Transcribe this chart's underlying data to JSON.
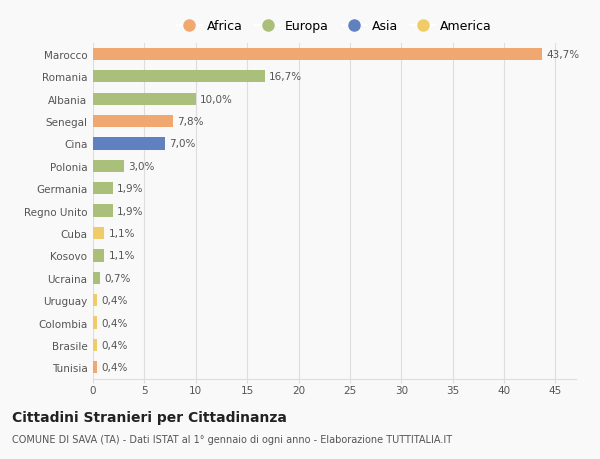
{
  "categories": [
    "Marocco",
    "Romania",
    "Albania",
    "Senegal",
    "Cina",
    "Polonia",
    "Germania",
    "Regno Unito",
    "Cuba",
    "Kosovo",
    "Ucraina",
    "Uruguay",
    "Colombia",
    "Brasile",
    "Tunisia"
  ],
  "values": [
    43.7,
    16.7,
    10.0,
    7.8,
    7.0,
    3.0,
    1.9,
    1.9,
    1.1,
    1.1,
    0.7,
    0.4,
    0.4,
    0.4,
    0.4
  ],
  "labels": [
    "43,7%",
    "16,7%",
    "10,0%",
    "7,8%",
    "7,0%",
    "3,0%",
    "1,9%",
    "1,9%",
    "1,1%",
    "1,1%",
    "0,7%",
    "0,4%",
    "0,4%",
    "0,4%",
    "0,4%"
  ],
  "continents": [
    "Africa",
    "Europa",
    "Europa",
    "Africa",
    "Asia",
    "Europa",
    "Europa",
    "Europa",
    "America",
    "Europa",
    "Europa",
    "America",
    "America",
    "America",
    "Africa"
  ],
  "colors": {
    "Africa": "#F0A870",
    "Europa": "#AABF7A",
    "Asia": "#6080BF",
    "America": "#F0CC68"
  },
  "legend_order": [
    "Africa",
    "Europa",
    "Asia",
    "America"
  ],
  "xlim": [
    0,
    47
  ],
  "xticks": [
    0,
    5,
    10,
    15,
    20,
    25,
    30,
    35,
    40,
    45
  ],
  "title": "Cittadini Stranieri per Cittadinanza",
  "subtitle": "COMUNE DI SAVA (TA) - Dati ISTAT al 1° gennaio di ogni anno - Elaborazione TUTTITALIA.IT",
  "background_color": "#f9f9f9",
  "bar_height": 0.55,
  "label_fontsize": 7.5,
  "tick_fontsize": 7.5,
  "legend_fontsize": 9,
  "title_fontsize": 10,
  "subtitle_fontsize": 7
}
